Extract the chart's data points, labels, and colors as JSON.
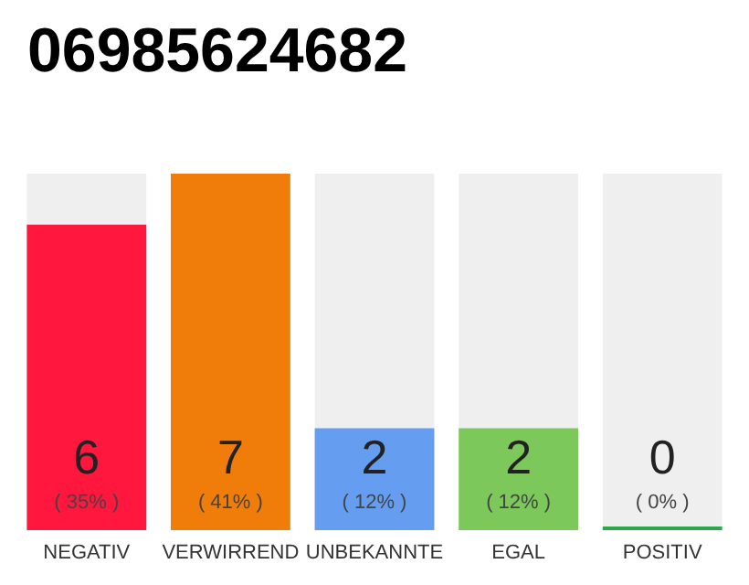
{
  "chart_data": {
    "type": "bar",
    "title": "06985624682",
    "categories": [
      "NEGATIV",
      "VERWIRREND",
      "UNBEKANNTE",
      "EGAL",
      "POSITIV"
    ],
    "values": [
      6,
      7,
      2,
      2,
      0
    ],
    "colors": [
      "#ff173d",
      "#f07d0a",
      "#659ef0",
      "#7dc85a",
      "#2ca84a"
    ],
    "annotations": [
      "( 35% )",
      "( 41% )",
      "( 12% )",
      "( 12% )",
      "( 0% )"
    ],
    "data_labels": true,
    "grid": false
  }
}
